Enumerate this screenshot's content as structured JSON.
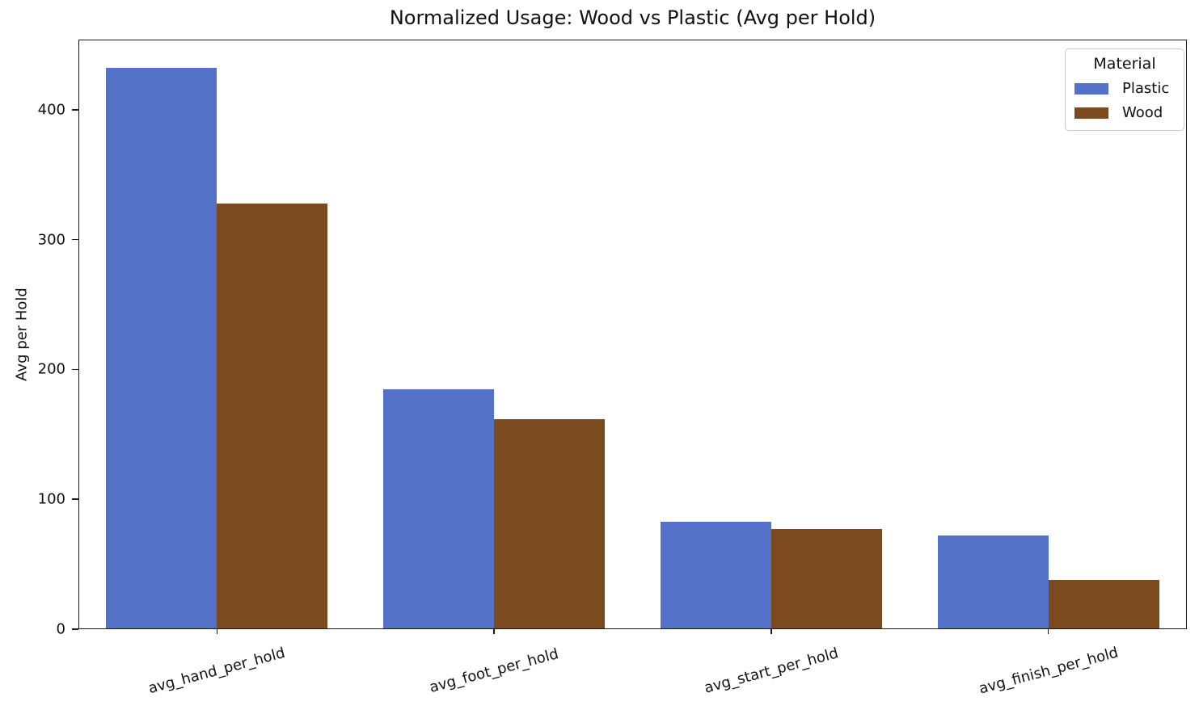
{
  "chart_data": {
    "type": "bar",
    "title": "Normalized Usage: Wood vs Plastic (Avg per Hold)",
    "xlabel": "",
    "ylabel": "Avg per Hold",
    "categories": [
      "avg_hand_per_hold",
      "avg_foot_per_hold",
      "avg_start_per_hold",
      "avg_finish_per_hold"
    ],
    "series": [
      {
        "name": "Plastic",
        "color": "#5471c8",
        "values": [
          432,
          185,
          83,
          72
        ]
      },
      {
        "name": "Wood",
        "color": "#7c4a1f",
        "values": [
          328,
          162,
          77,
          38
        ]
      }
    ],
    "ylim": [
      0,
      454
    ],
    "yticks": [
      0,
      100,
      200,
      300,
      400
    ],
    "xtick_rotation_deg": -15,
    "grid": false,
    "legend": {
      "title": "Material",
      "position": "upper right",
      "entries": [
        "Plastic",
        "Wood"
      ]
    },
    "colors": {
      "axis": "#1a1a1a",
      "text": "#111111",
      "legend_border": "#c9c9c9",
      "background": "#ffffff"
    }
  }
}
